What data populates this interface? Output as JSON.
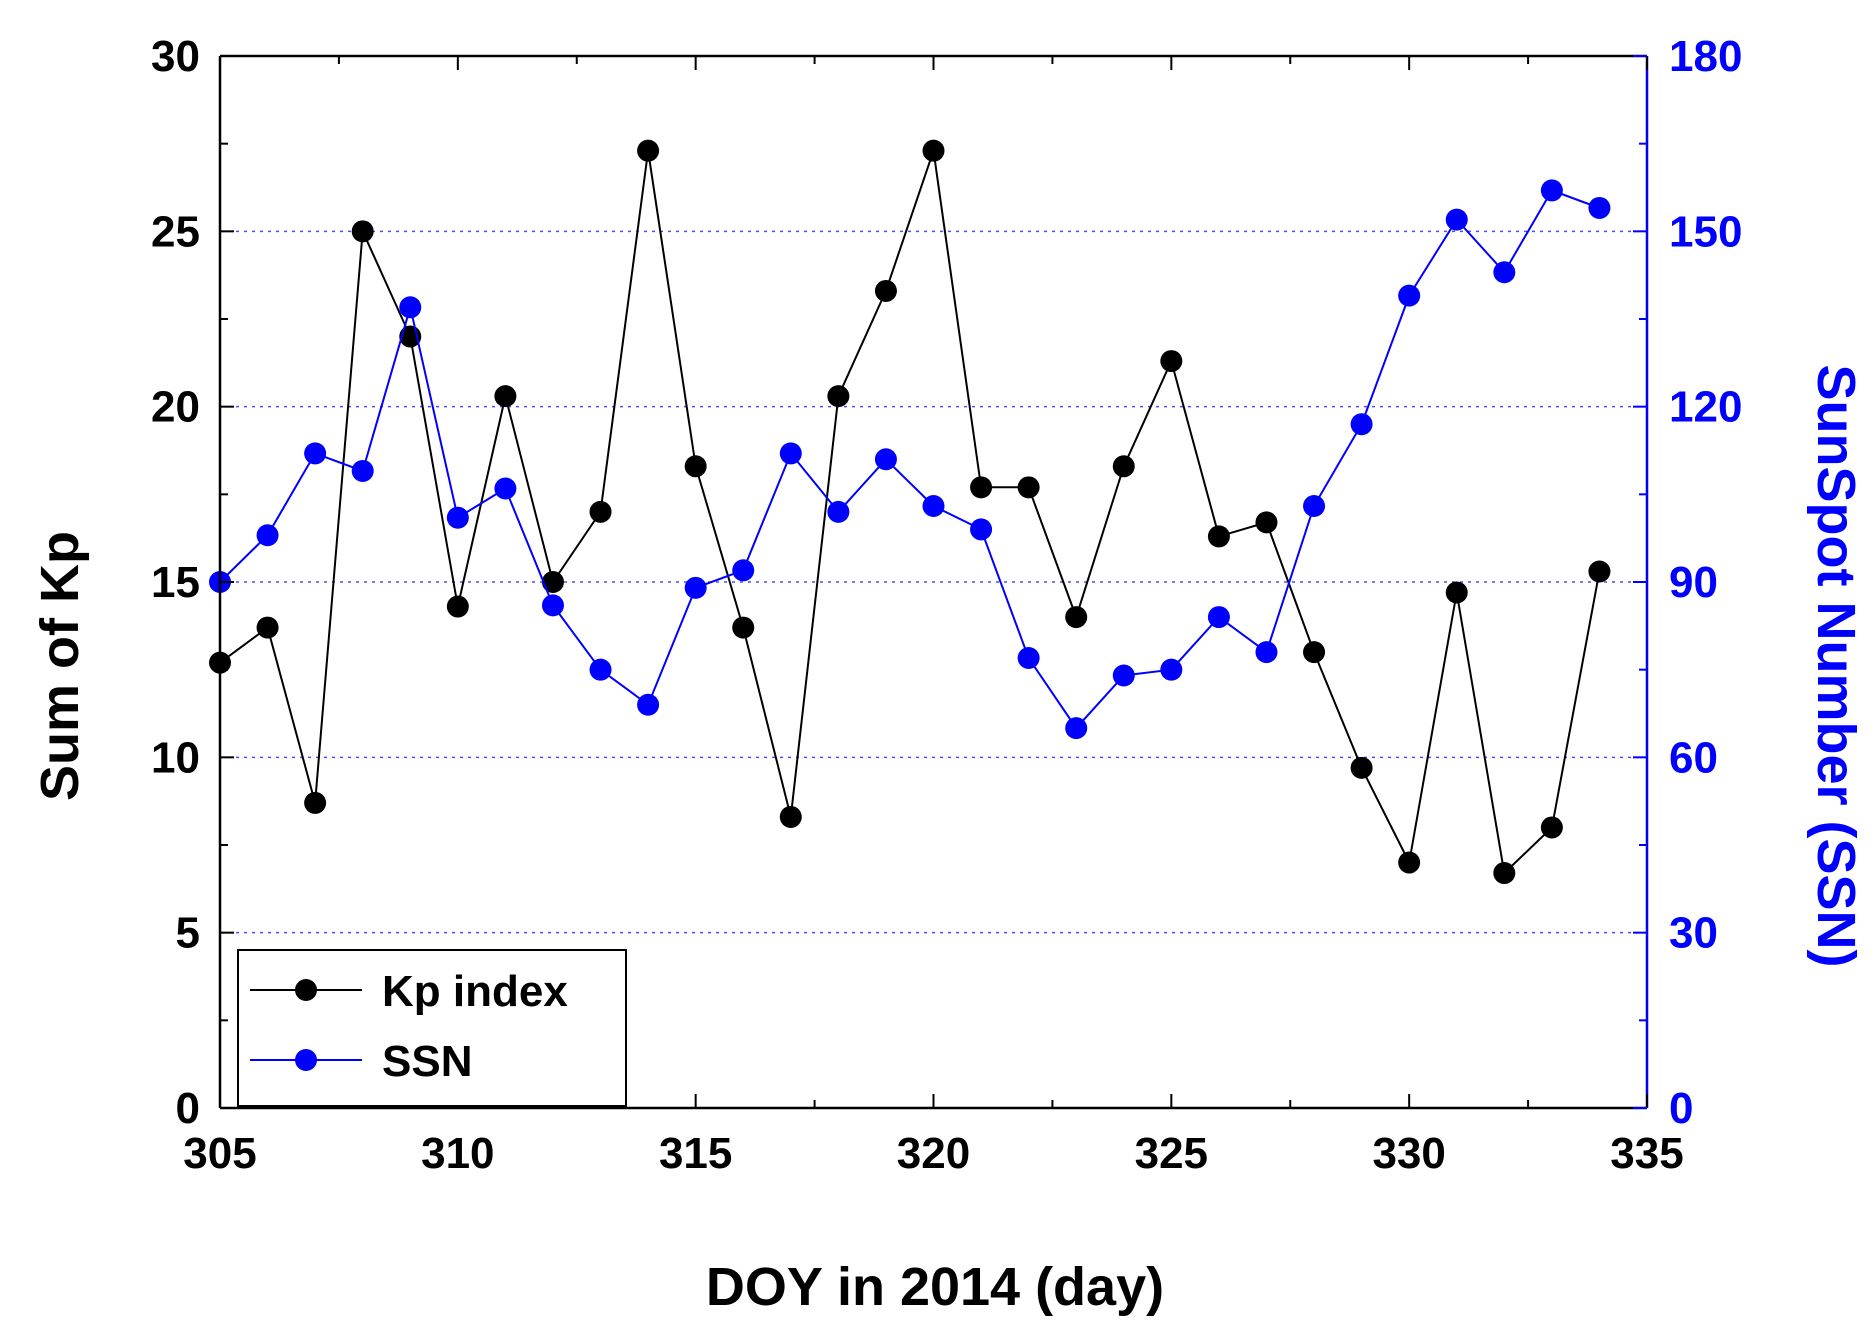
{
  "chart_data": {
    "type": "line",
    "xlabel": "DOY in 2014 (day)",
    "ylabel_left": "Sum of Kp",
    "ylabel_right": "SunSpot Number (SSN)",
    "xlim": [
      305,
      335
    ],
    "xticks": [
      305,
      310,
      315,
      320,
      325,
      330,
      335
    ],
    "ylim_left": [
      0,
      30
    ],
    "yticks_left": [
      0,
      5,
      10,
      15,
      20,
      25,
      30
    ],
    "ylim_right": [
      0,
      180
    ],
    "yticks_right": [
      0,
      30,
      60,
      90,
      120,
      150,
      180
    ],
    "grid": "horizontal dotted (blue)",
    "legend_position": "bottom-left",
    "colors": {
      "kp": "#000000",
      "ssn": "#0000ff",
      "grid": "#4d4dff"
    },
    "x": [
      305,
      306,
      307,
      308,
      309,
      310,
      311,
      312,
      313,
      314,
      315,
      316,
      317,
      318,
      319,
      320,
      321,
      322,
      323,
      324,
      325,
      326,
      327,
      328,
      329,
      330,
      331,
      332,
      333,
      334
    ],
    "series": [
      {
        "name": "Kp index",
        "axis": "left",
        "color": "#000000",
        "values": [
          12.7,
          13.7,
          8.7,
          25.0,
          22.0,
          14.3,
          20.3,
          15.0,
          17.0,
          27.3,
          18.3,
          13.7,
          8.3,
          20.3,
          23.3,
          27.3,
          17.7,
          17.7,
          14.0,
          18.3,
          21.3,
          16.3,
          16.7,
          13.0,
          9.7,
          7.0,
          14.7,
          6.7,
          8.0,
          15.3
        ]
      },
      {
        "name": "SSN",
        "axis": "right",
        "color": "#0000ff",
        "values": [
          90,
          98,
          112,
          109,
          137,
          101,
          106,
          86,
          75,
          69,
          89,
          92,
          112,
          102,
          111,
          103,
          99,
          77,
          65,
          74,
          75,
          84,
          78,
          103,
          117,
          139,
          152,
          143,
          157,
          154
        ]
      }
    ]
  }
}
